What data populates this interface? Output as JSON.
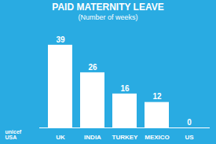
{
  "chart_data": {
    "type": "bar",
    "title": "PAID MATERNITY LEAVE",
    "subtitle": "(Number of weeks)",
    "categories": [
      "UK",
      "INDIA",
      "TURKEY",
      "MEXICO",
      "US"
    ],
    "values": [
      39,
      26,
      16,
      12,
      0
    ],
    "color": "#ffffff",
    "ylim": [
      0,
      46
    ],
    "grid": false,
    "data_labels": true,
    "tick_labels": "x",
    "annotations": [
      "unicef\nUSA"
    ]
  }
}
